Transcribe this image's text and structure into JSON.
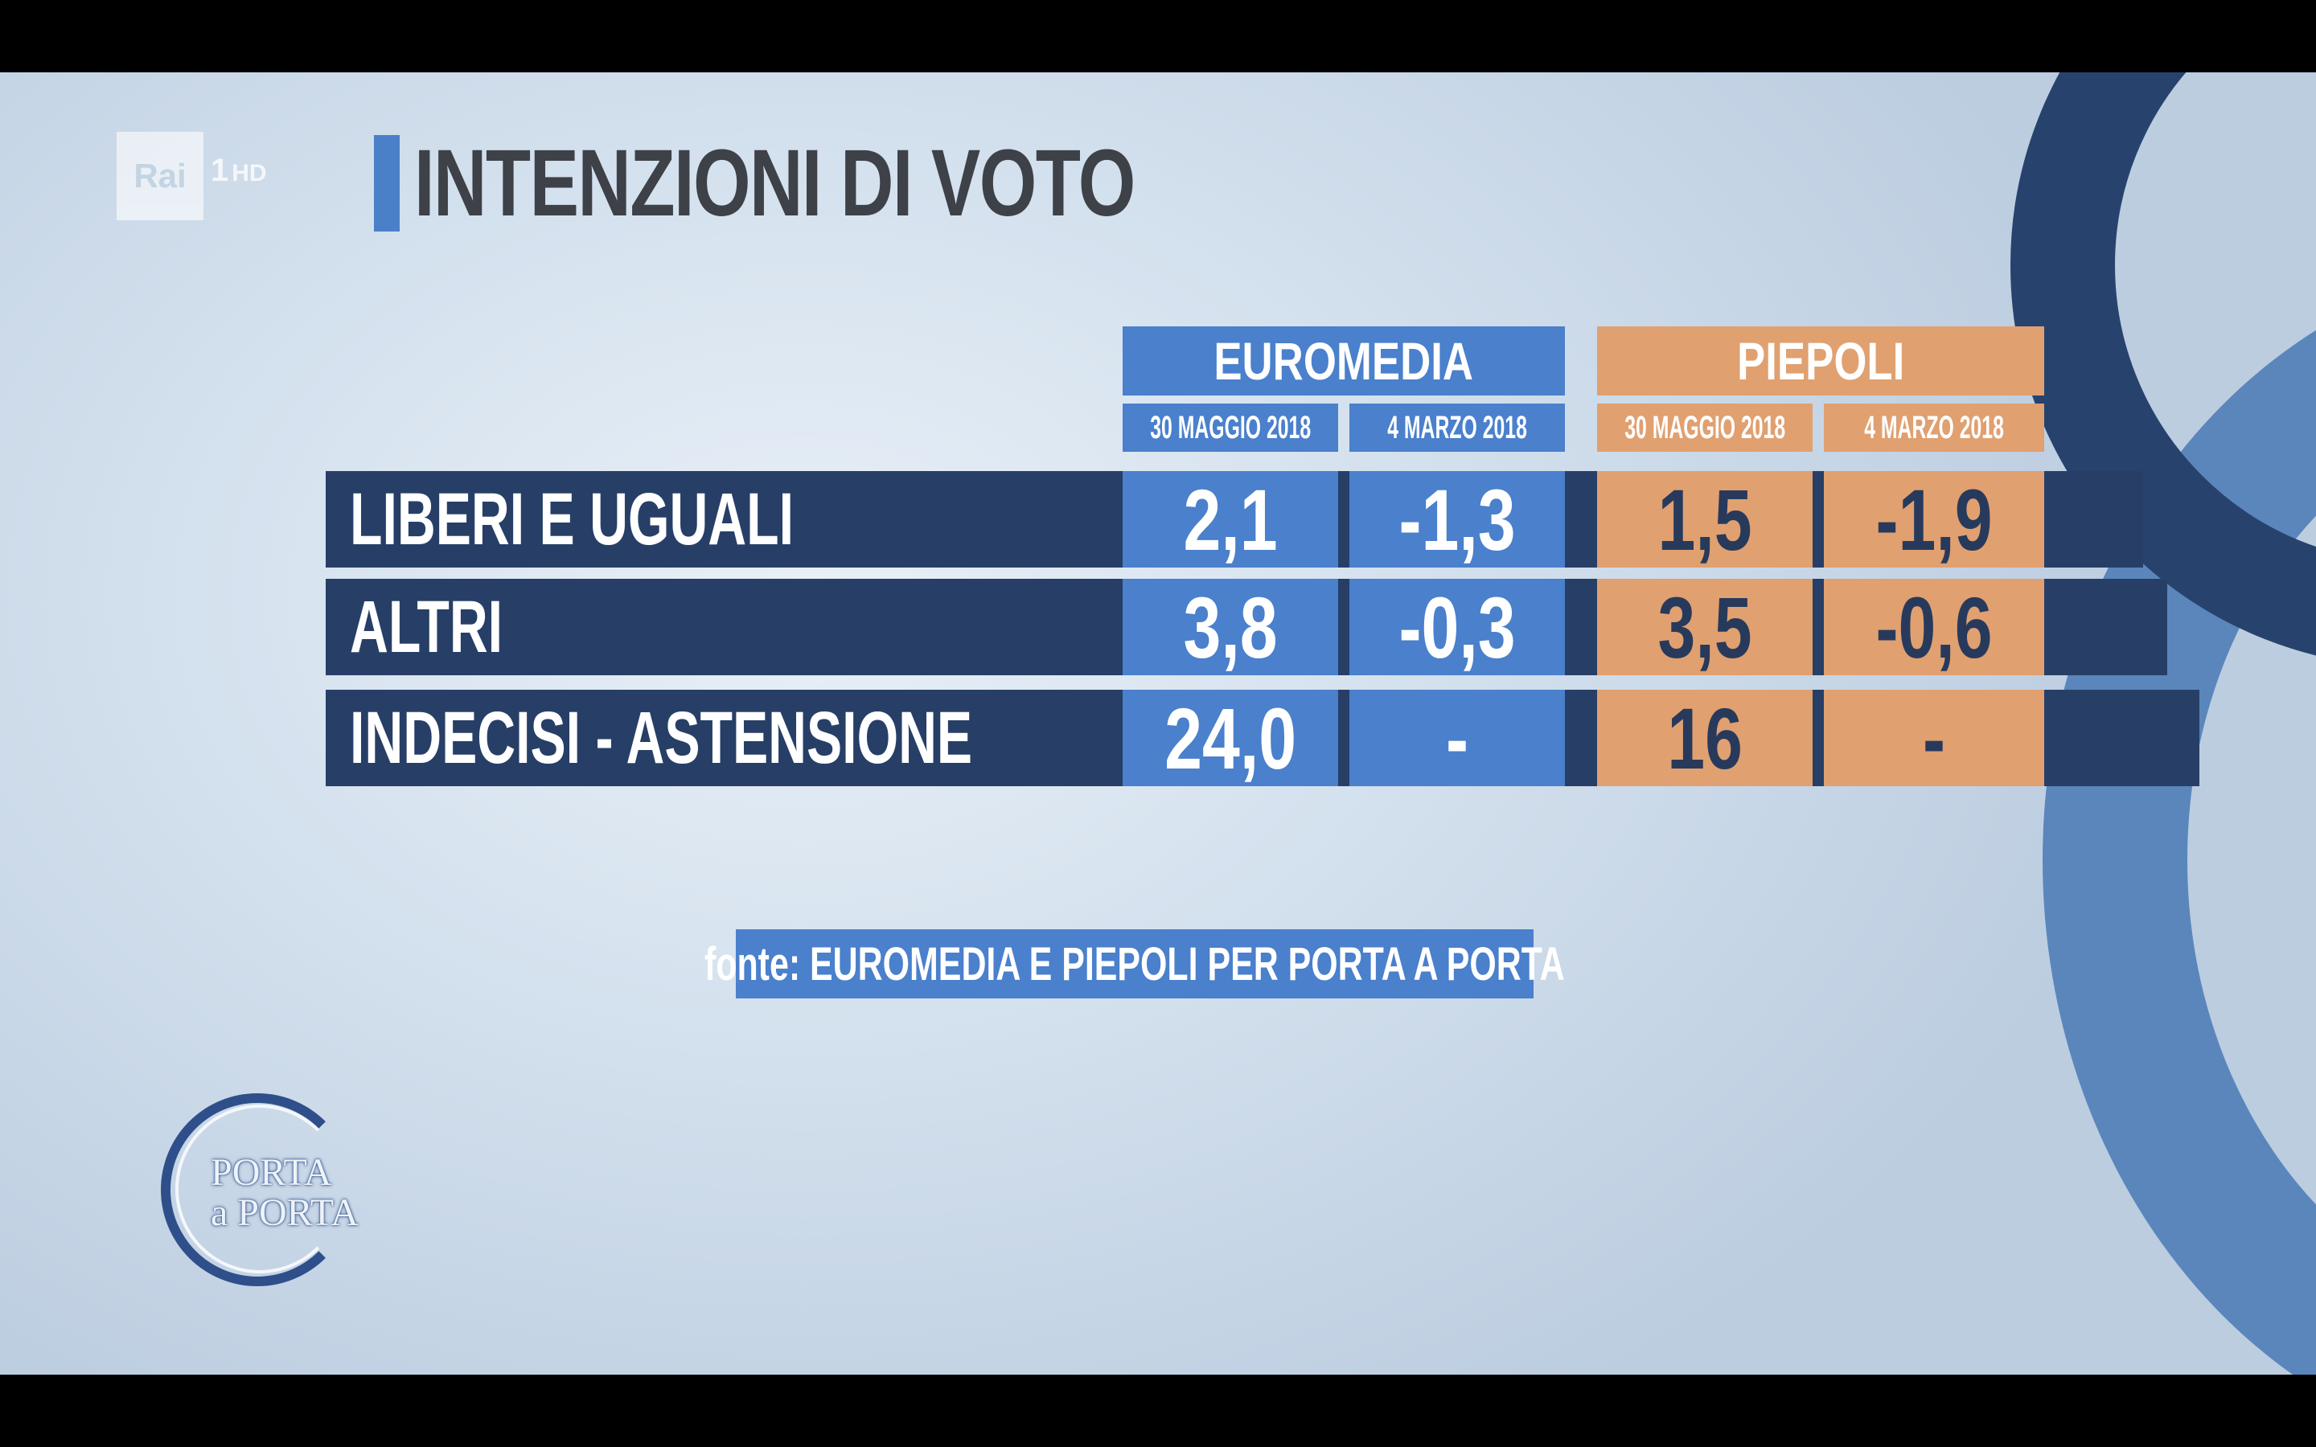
{
  "broadcast": {
    "channel_brand": "Rai",
    "channel_number": "1",
    "channel_quality": "HD",
    "show_name_line1": "PORTA",
    "show_name_line2": "a PORTA"
  },
  "title": "INTENZIONI DI VOTO",
  "pollsters": [
    {
      "name": "EUROMEDIA",
      "color": "#4a80cc",
      "dates": [
        "30 MAGGIO 2018",
        "4 MARZO 2018"
      ]
    },
    {
      "name": "PIEPOLI",
      "color": "#e0a070",
      "dates": [
        "30 MAGGIO 2018",
        "4 MARZO 2018"
      ]
    }
  ],
  "rows": [
    {
      "label": "LIBERI E UGUALI",
      "values": [
        "2,1",
        "-1,3",
        "1,5",
        "-1,9"
      ]
    },
    {
      "label": "ALTRI",
      "values": [
        "3,8",
        "-0,3",
        "3,5",
        "-0,6"
      ]
    },
    {
      "label": "INDECISI - ASTENSIONE",
      "values": [
        "24,0",
        "-",
        "16",
        "-"
      ]
    }
  ],
  "source": "fonte: EUROMEDIA E PIEPOLI PER PORTA A PORTA",
  "colors": {
    "row_background": "#273f67",
    "title_accent": "#4a80c8",
    "title_text": "#3e4148"
  }
}
